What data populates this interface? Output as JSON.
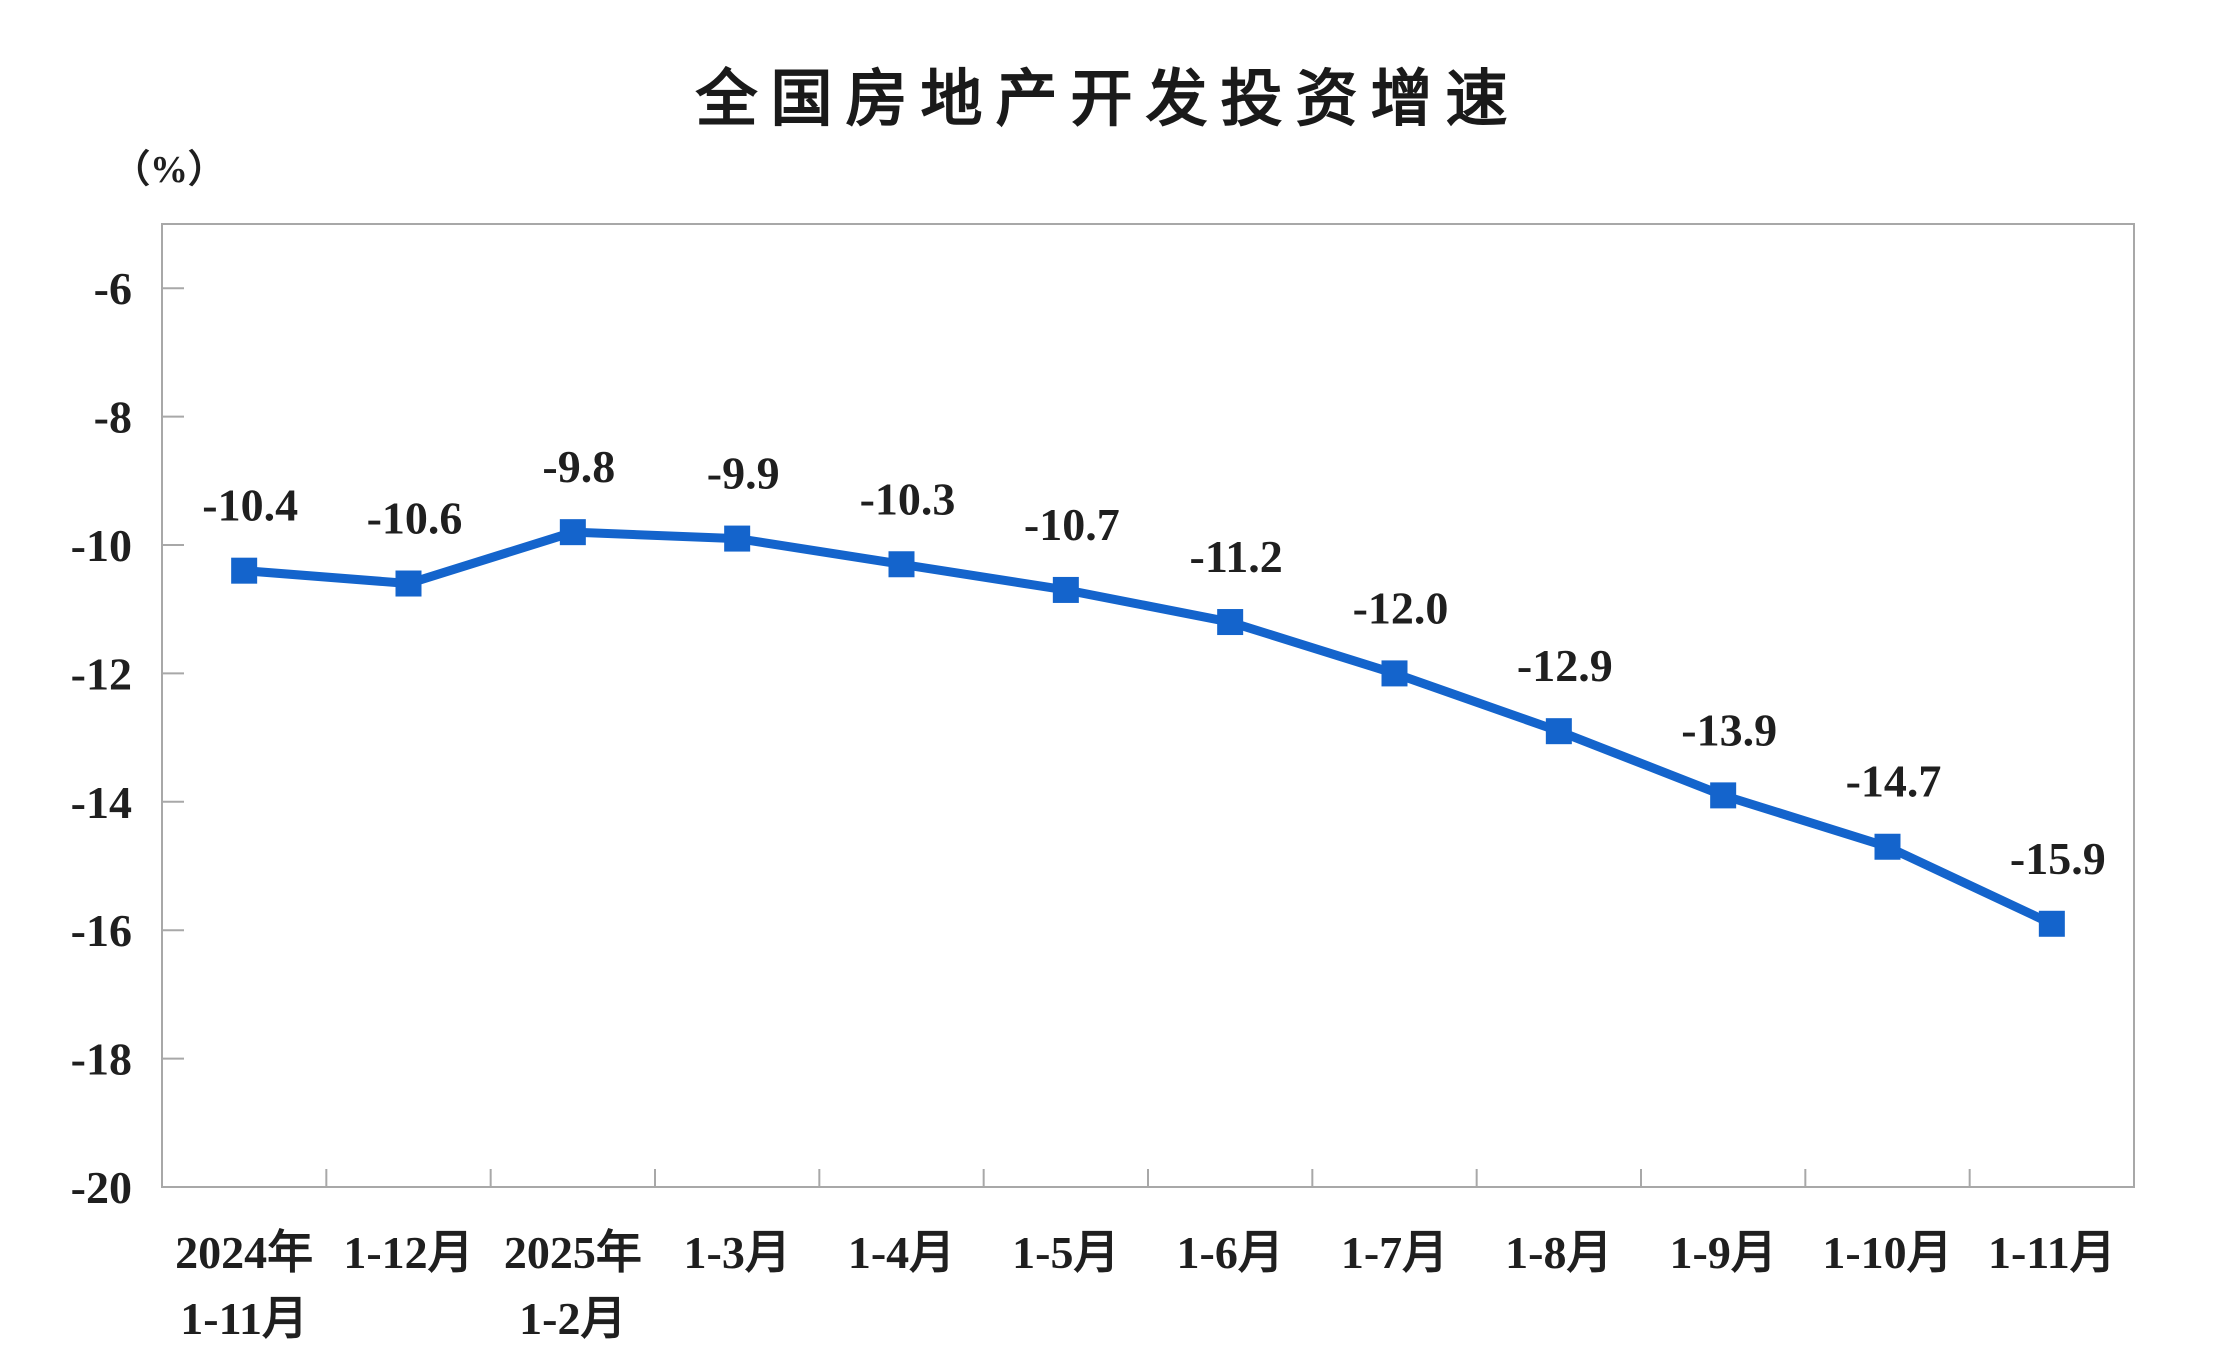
{
  "header": {
    "title": "全国房地产开发投资增速",
    "y_axis_unit": "（%）"
  },
  "chart_data": {
    "type": "line",
    "title": "全国房地产开发投资增速",
    "ylabel": "（%）",
    "xlabel": "",
    "categories": [
      "2024年\n1-11月",
      "1-12月",
      "2025年\n1-2月",
      "1-3月",
      "1-4月",
      "1-5月",
      "1-6月",
      "1-7月",
      "1-8月",
      "1-9月",
      "1-10月",
      "1-11月"
    ],
    "values": [
      -10.4,
      -10.6,
      -9.8,
      -9.9,
      -10.3,
      -10.7,
      -11.2,
      -12.0,
      -12.9,
      -13.9,
      -14.7,
      -15.9
    ],
    "data_labels": [
      "-10.4",
      "-10.6",
      "-9.8",
      "-9.9",
      "-10.3",
      "-10.7",
      "-11.2",
      "-12.0",
      "-12.9",
      "-13.9",
      "-14.7",
      "-15.9"
    ],
    "ylim": [
      -20,
      -5
    ],
    "yticks": [
      -6,
      -8,
      -10,
      -12,
      -14,
      -16,
      -18,
      -20
    ],
    "grid": "off",
    "legend": "none",
    "marker": "square",
    "line_color": "#1464CC",
    "axis_color": "#A8A8A8",
    "text_color": "#1f1f1f"
  }
}
